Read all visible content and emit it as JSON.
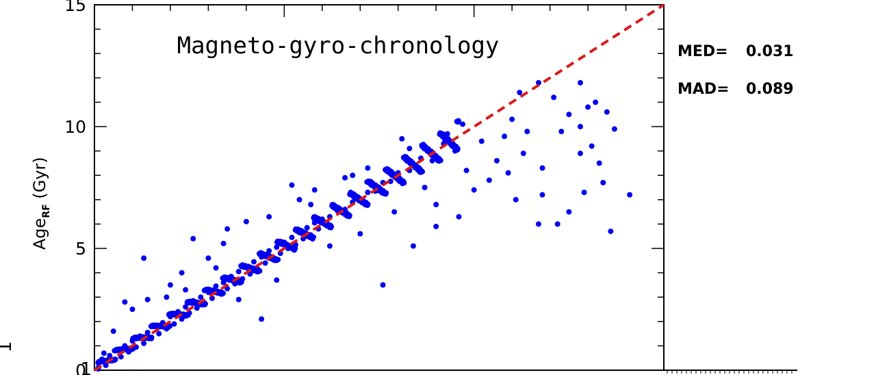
{
  "chart_data": {
    "type": "scatter",
    "title": "Magneto-gyro-chronology",
    "ylabel_main": "Age",
    "ylabel_sub": "RF",
    "ylabel_unit": " (Gyr)",
    "xlim": [
      0,
      15
    ],
    "ylim": [
      0,
      15
    ],
    "y_ticks": [
      "0",
      "5",
      "10",
      "15"
    ],
    "stats": [
      {
        "label": "MED=",
        "value": "0.031"
      },
      {
        "label": "MAD=",
        "value": "0.089"
      }
    ],
    "reference_line": {
      "style": "dashed",
      "color": "#d81c1c",
      "x": [
        0,
        15
      ],
      "y": [
        0,
        15
      ]
    },
    "point_color": "#0000ee",
    "edge_labels": {
      "left_bottom": "1",
      "left_bottom_2": "1"
    },
    "series": [
      {
        "name": "",
        "points": [
          [
            0.1,
            0.3
          ],
          [
            0.2,
            0.45
          ],
          [
            0.3,
            0.2
          ],
          [
            0.4,
            0.6
          ],
          [
            0.5,
            0.4
          ],
          [
            0.6,
            0.85
          ],
          [
            0.7,
            0.55
          ],
          [
            0.8,
            1.0
          ],
          [
            0.9,
            0.75
          ],
          [
            1.0,
            1.2
          ],
          [
            1.1,
            0.95
          ],
          [
            1.2,
            1.4
          ],
          [
            1.3,
            1.1
          ],
          [
            1.4,
            1.55
          ],
          [
            1.5,
            1.3
          ],
          [
            1.6,
            1.8
          ],
          [
            1.7,
            1.5
          ],
          [
            1.8,
            1.95
          ],
          [
            1.9,
            1.7
          ],
          [
            2.0,
            2.2
          ],
          [
            2.1,
            1.9
          ],
          [
            2.2,
            2.4
          ],
          [
            2.3,
            2.1
          ],
          [
            2.4,
            2.6
          ],
          [
            2.5,
            2.35
          ],
          [
            2.6,
            2.85
          ],
          [
            2.7,
            2.55
          ],
          [
            2.8,
            3.0
          ],
          [
            2.9,
            2.75
          ],
          [
            3.0,
            3.2
          ],
          [
            3.1,
            2.95
          ],
          [
            3.2,
            3.45
          ],
          [
            3.3,
            3.15
          ],
          [
            3.4,
            3.6
          ],
          [
            3.5,
            3.35
          ],
          [
            3.6,
            3.85
          ],
          [
            3.7,
            3.55
          ],
          [
            3.8,
            4.05
          ],
          [
            3.9,
            3.75
          ],
          [
            4.0,
            4.25
          ],
          [
            4.1,
            3.95
          ],
          [
            4.2,
            4.45
          ],
          [
            4.3,
            4.15
          ],
          [
            4.4,
            4.65
          ],
          [
            4.5,
            4.4
          ],
          [
            4.6,
            4.9
          ],
          [
            4.7,
            4.6
          ],
          [
            4.8,
            5.05
          ],
          [
            4.9,
            4.8
          ],
          [
            5.0,
            5.25
          ],
          [
            5.1,
            5.0
          ],
          [
            5.2,
            5.45
          ],
          [
            5.3,
            5.15
          ],
          [
            5.4,
            5.65
          ],
          [
            5.5,
            5.4
          ],
          [
            5.6,
            5.85
          ],
          [
            5.7,
            5.55
          ],
          [
            5.8,
            6.05
          ],
          [
            5.9,
            5.8
          ],
          [
            6.0,
            6.2
          ],
          [
            6.2,
            6.3
          ],
          [
            6.4,
            6.55
          ],
          [
            6.6,
            6.6
          ],
          [
            6.8,
            6.9
          ],
          [
            7.0,
            7.0
          ],
          [
            7.2,
            7.3
          ],
          [
            7.4,
            7.35
          ],
          [
            7.6,
            7.7
          ],
          [
            7.8,
            7.75
          ],
          [
            8.0,
            8.1
          ],
          [
            8.3,
            8.2
          ],
          [
            8.6,
            8.7
          ],
          [
            8.9,
            8.6
          ],
          [
            9.2,
            9.3
          ],
          [
            9.5,
            9.0
          ],
          [
            0.5,
            1.6
          ],
          [
            1.0,
            2.5
          ],
          [
            1.4,
            2.9
          ],
          [
            2.0,
            3.5
          ],
          [
            2.3,
            4.0
          ],
          [
            3.0,
            4.6
          ],
          [
            3.4,
            5.2
          ],
          [
            4.0,
            6.1
          ],
          [
            4.6,
            6.3
          ],
          [
            5.4,
            7.0
          ],
          [
            5.8,
            7.4
          ],
          [
            6.6,
            7.9
          ],
          [
            7.2,
            8.3
          ],
          [
            8.1,
            9.5
          ],
          [
            9.7,
            10.1
          ],
          [
            11.2,
            11.4
          ],
          [
            11.7,
            11.8
          ],
          [
            12.8,
            11.8
          ],
          [
            12.1,
            11.2
          ],
          [
            13.2,
            11.0
          ],
          [
            12.5,
            10.5
          ],
          [
            12.8,
            10.0
          ],
          [
            13.5,
            10.6
          ],
          [
            13.0,
            10.8
          ],
          [
            12.3,
            9.8
          ],
          [
            13.7,
            9.9
          ],
          [
            13.1,
            9.2
          ],
          [
            12.8,
            8.9
          ],
          [
            13.3,
            8.5
          ],
          [
            13.4,
            7.7
          ],
          [
            14.1,
            7.2
          ],
          [
            12.9,
            7.3
          ],
          [
            11.8,
            7.2
          ],
          [
            12.5,
            6.5
          ],
          [
            12.2,
            6.0
          ],
          [
            11.7,
            6.0
          ],
          [
            11.1,
            7.0
          ],
          [
            10.9,
            8.1
          ],
          [
            10.6,
            8.6
          ],
          [
            10.2,
            9.4
          ],
          [
            11.4,
            9.8
          ],
          [
            11.8,
            8.3
          ],
          [
            11.3,
            8.9
          ],
          [
            10.8,
            9.6
          ],
          [
            13.6,
            5.7
          ],
          [
            7.6,
            3.5
          ],
          [
            8.4,
            5.1
          ],
          [
            9.0,
            5.9
          ],
          [
            9.6,
            6.3
          ],
          [
            10.0,
            7.4
          ],
          [
            2.6,
            5.4
          ],
          [
            1.3,
            4.6
          ],
          [
            4.4,
            2.1
          ],
          [
            3.8,
            2.9
          ],
          [
            6.2,
            5.1
          ],
          [
            9.0,
            6.8
          ],
          [
            8.7,
            7.5
          ],
          [
            10.4,
            7.8
          ],
          [
            9.8,
            8.2
          ],
          [
            11.0,
            10.3
          ],
          [
            0.8,
            2.8
          ],
          [
            0.1,
            0.1
          ],
          [
            0.25,
            0.7
          ],
          [
            3.5,
            5.8
          ],
          [
            5.2,
            7.6
          ],
          [
            6.8,
            8.0
          ],
          [
            8.3,
            9.1
          ],
          [
            9.3,
            9.7
          ],
          [
            4.8,
            3.7
          ],
          [
            7.0,
            5.6
          ],
          [
            7.9,
            6.5
          ],
          [
            1.9,
            3.0
          ],
          [
            2.4,
            3.3
          ],
          [
            3.2,
            4.2
          ],
          [
            5.7,
            6.8
          ]
        ]
      }
    ]
  }
}
